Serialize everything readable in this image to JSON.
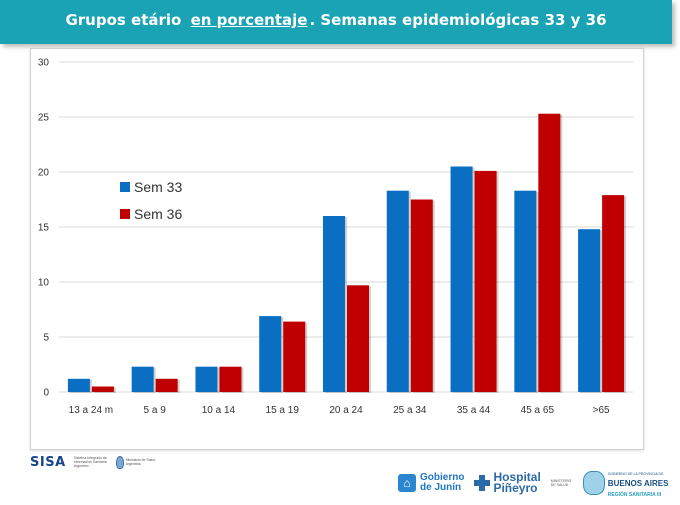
{
  "header": {
    "title_pre": "Grupos etário ",
    "title_underlined": "en porcentaje",
    "title_post": ". Semanas epidemiológicas 33 y 36",
    "bg_color": "#1aa3b4"
  },
  "chart_data": {
    "type": "bar",
    "categories": [
      "13 a 24 m",
      "5 a 9",
      "10 a 14",
      "15 a 19",
      "20 a 24",
      "25 a 34",
      "35 a 44",
      "45 a 65",
      ">65"
    ],
    "series": [
      {
        "name": "Sem 33",
        "color": "#0a6fc2",
        "values": [
          1.2,
          2.3,
          2.3,
          6.9,
          16.0,
          18.3,
          20.5,
          18.3,
          14.8
        ]
      },
      {
        "name": "Sem 36",
        "color": "#c00000",
        "values": [
          0.5,
          1.2,
          2.3,
          6.4,
          9.7,
          17.5,
          20.1,
          25.3,
          17.9
        ]
      }
    ],
    "ylim": [
      0,
      30
    ],
    "yticks": [
      0,
      5,
      10,
      15,
      20,
      25,
      30
    ],
    "grid": true,
    "legend_placement": "left"
  },
  "footer": {
    "sisa": "SISA",
    "sisa_sub": "Sistema Integrado de Información Sanitaria Argentino",
    "ministerio": "Ministerio de Salud Argentina",
    "junin": "Gobierno de Junín",
    "junin_line1": "Gobierno",
    "junin_line2": "de Junín",
    "hospital_line1": "Hospital",
    "hospital_line2": "Piñeyro",
    "min_salud": "MINISTERIO DE SALUD",
    "ba_small": "GOBIERNO DE LA PROVINCIA DE",
    "ba_big": "BUENOS AIRES",
    "ba_region": "REGIÓN SANITARIA III"
  }
}
